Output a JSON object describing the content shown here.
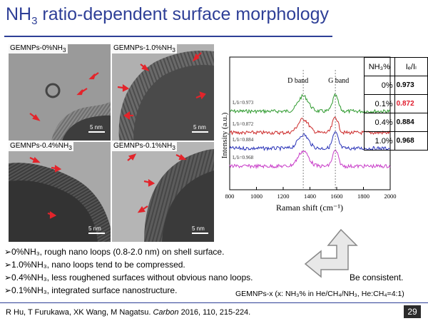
{
  "title": {
    "base": "NH",
    "sub": "3",
    "rest": " ratio-dependent surface morphology"
  },
  "panels": [
    {
      "label": {
        "a": "GEMNPs-0%NH",
        "sub": "3"
      },
      "scale": "5 nm"
    },
    {
      "label": {
        "a": "GEMNPs-1.0%NH",
        "sub": "3"
      },
      "scale": "5 nm"
    },
    {
      "label": {
        "a": "GEMNPs-0.4%NH",
        "sub": "3"
      },
      "scale": "5 nm"
    },
    {
      "label": {
        "a": "GEMNPs-0.1%NH",
        "sub": "3"
      },
      "scale": "5 nm"
    }
  ],
  "colors": {
    "title": "#2E3F97",
    "arrow": "#e3242b",
    "series_0": "#2e9a2e",
    "series_1": "#cc2929",
    "series_2": "#2b34b8",
    "series_3": "#c83dc8",
    "highlight": "#e0192a"
  },
  "chart_data": {
    "type": "line",
    "xlabel": "Raman shift (cm⁻¹)",
    "ylabel": "Intensity (a.u.)",
    "xlim": [
      800,
      2000
    ],
    "xticks": [
      "800",
      "1000",
      "1200",
      "1400",
      "1600",
      "1800",
      "2000"
    ],
    "annotations": [
      "D band",
      "G band"
    ],
    "d_band": 1350,
    "g_band": 1590,
    "series": [
      {
        "label": "Iₑ/Iₗ=0.973",
        "ratio": 0.973,
        "offset": 3
      },
      {
        "label": "Iₑ/Iₗ=0.872",
        "ratio": 0.872,
        "offset": 2
      },
      {
        "label": "Iₑ/Iₗ=0.884",
        "ratio": 0.884,
        "offset": 1
      },
      {
        "label": "Iₑ/Iₗ=0.968",
        "ratio": 0.968,
        "offset": 0
      }
    ]
  },
  "table": {
    "header_pct": "NH₃%",
    "header_ratio": "Iₑ/Iₗ",
    "rows": [
      {
        "pct": "0%",
        "val": "0.973",
        "highlight": false
      },
      {
        "pct": "0.1%",
        "val": "0.872",
        "highlight": true
      },
      {
        "pct": "0.4%",
        "val": "0.884",
        "highlight": false
      },
      {
        "pct": "1.0%",
        "val": "0.968",
        "highlight": false
      }
    ]
  },
  "bullets": [
    "➢0%NH₃, rough nano loops (0.8-2.0 nm) on shell surface.",
    "➢1.0%NH₃, nano loops tend to be compressed.",
    "➢0.4%NH₃, less roughened surfaces without obvious nano loops.",
    "➢0.1%NH₃, integrated surface nanostructure."
  ],
  "consistent": "Be consistent.",
  "legend_note": "GEMNPs-x (x: NH₃% in He/CH₄/NH₃, He:CH₄=4:1)",
  "reference": {
    "authors": "R Hu, T Furukawa, XK Wang, M Nagatsu. ",
    "journal": "Carbon",
    "rest": " 2016, 110, 215-224."
  },
  "page_number": "29"
}
